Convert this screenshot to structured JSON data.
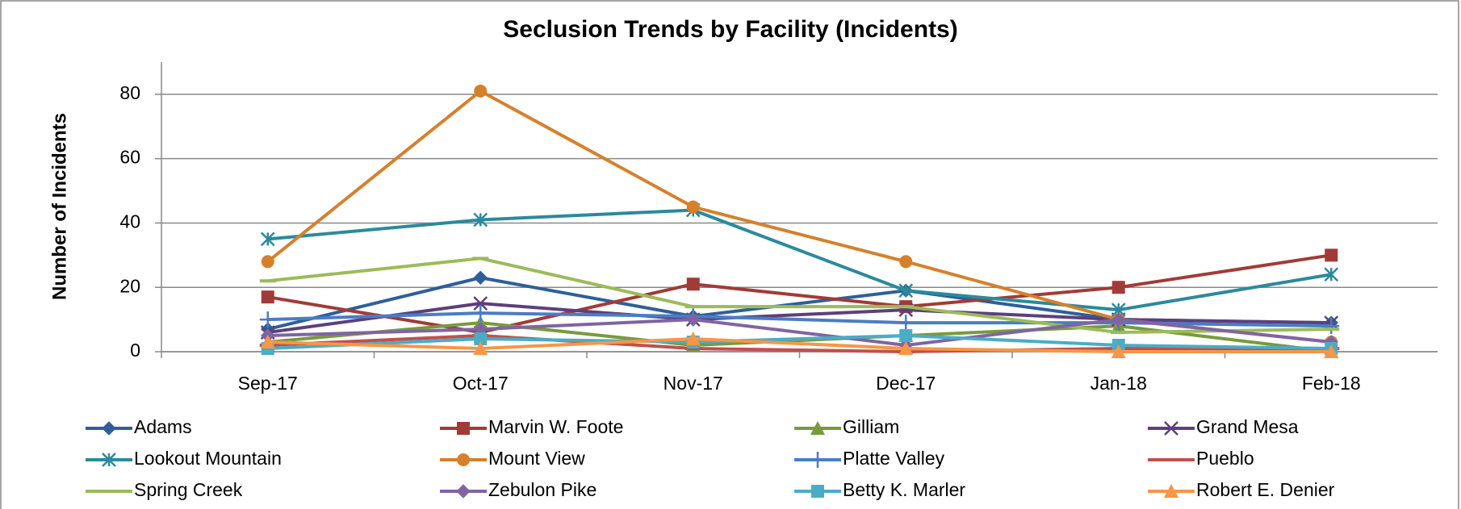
{
  "chart_data": {
    "type": "line",
    "title": "Seclusion Trends by Facility (Incidents)",
    "y_label": "Number of Incidents",
    "categories": [
      "Sep-17",
      "Oct-17",
      "Nov-17",
      "Dec-17",
      "Jan-18",
      "Feb-18"
    ],
    "ylim": [
      0,
      90
    ],
    "yticks": [
      0,
      20,
      40,
      60,
      80
    ],
    "grid": true,
    "legend": "bottom",
    "series": [
      {
        "name": "Adams",
        "color": "#2f5f98",
        "marker": "diamond",
        "values": [
          7,
          23,
          11,
          19,
          10,
          9
        ]
      },
      {
        "name": "Marvin W. Foote",
        "color": "#a13b37",
        "marker": "square",
        "values": [
          17,
          6,
          21,
          14,
          20,
          30
        ]
      },
      {
        "name": "Gilliam",
        "color": "#789a3d",
        "marker": "triangle",
        "values": [
          3,
          9,
          2,
          5,
          8,
          0
        ]
      },
      {
        "name": "Grand Mesa",
        "color": "#5d3f7d",
        "marker": "x",
        "values": [
          6,
          15,
          10,
          13,
          10,
          9
        ]
      },
      {
        "name": "Lookout Mountain",
        "color": "#2b8a9c",
        "marker": "star",
        "values": [
          35,
          41,
          44,
          19,
          13,
          24
        ]
      },
      {
        "name": "Mount View",
        "color": "#d6802c",
        "marker": "circle",
        "values": [
          28,
          81,
          45,
          28,
          10,
          3
        ]
      },
      {
        "name": "Platte Valley",
        "color": "#4a7dc4",
        "marker": "plus",
        "values": [
          10,
          12,
          11,
          9,
          9,
          8
        ]
      },
      {
        "name": "Pueblo",
        "color": "#c0504d",
        "marker": "dash",
        "values": [
          2,
          5,
          1,
          0,
          1,
          1
        ]
      },
      {
        "name": "Spring Creek",
        "color": "#9bbb59",
        "marker": "dash",
        "values": [
          22,
          29,
          14,
          14,
          6,
          7
        ]
      },
      {
        "name": "Zebulon Pike",
        "color": "#8064a2",
        "marker": "diamond",
        "values": [
          5,
          7,
          10,
          2,
          10,
          3
        ]
      },
      {
        "name": "Betty K. Marler",
        "color": "#4bacc6",
        "marker": "square",
        "values": [
          1,
          4,
          3,
          5,
          2,
          1
        ]
      },
      {
        "name": "Robert E. Denier",
        "color": "#f79646",
        "marker": "triangle",
        "values": [
          3,
          1,
          4,
          1,
          0,
          0
        ]
      }
    ]
  }
}
